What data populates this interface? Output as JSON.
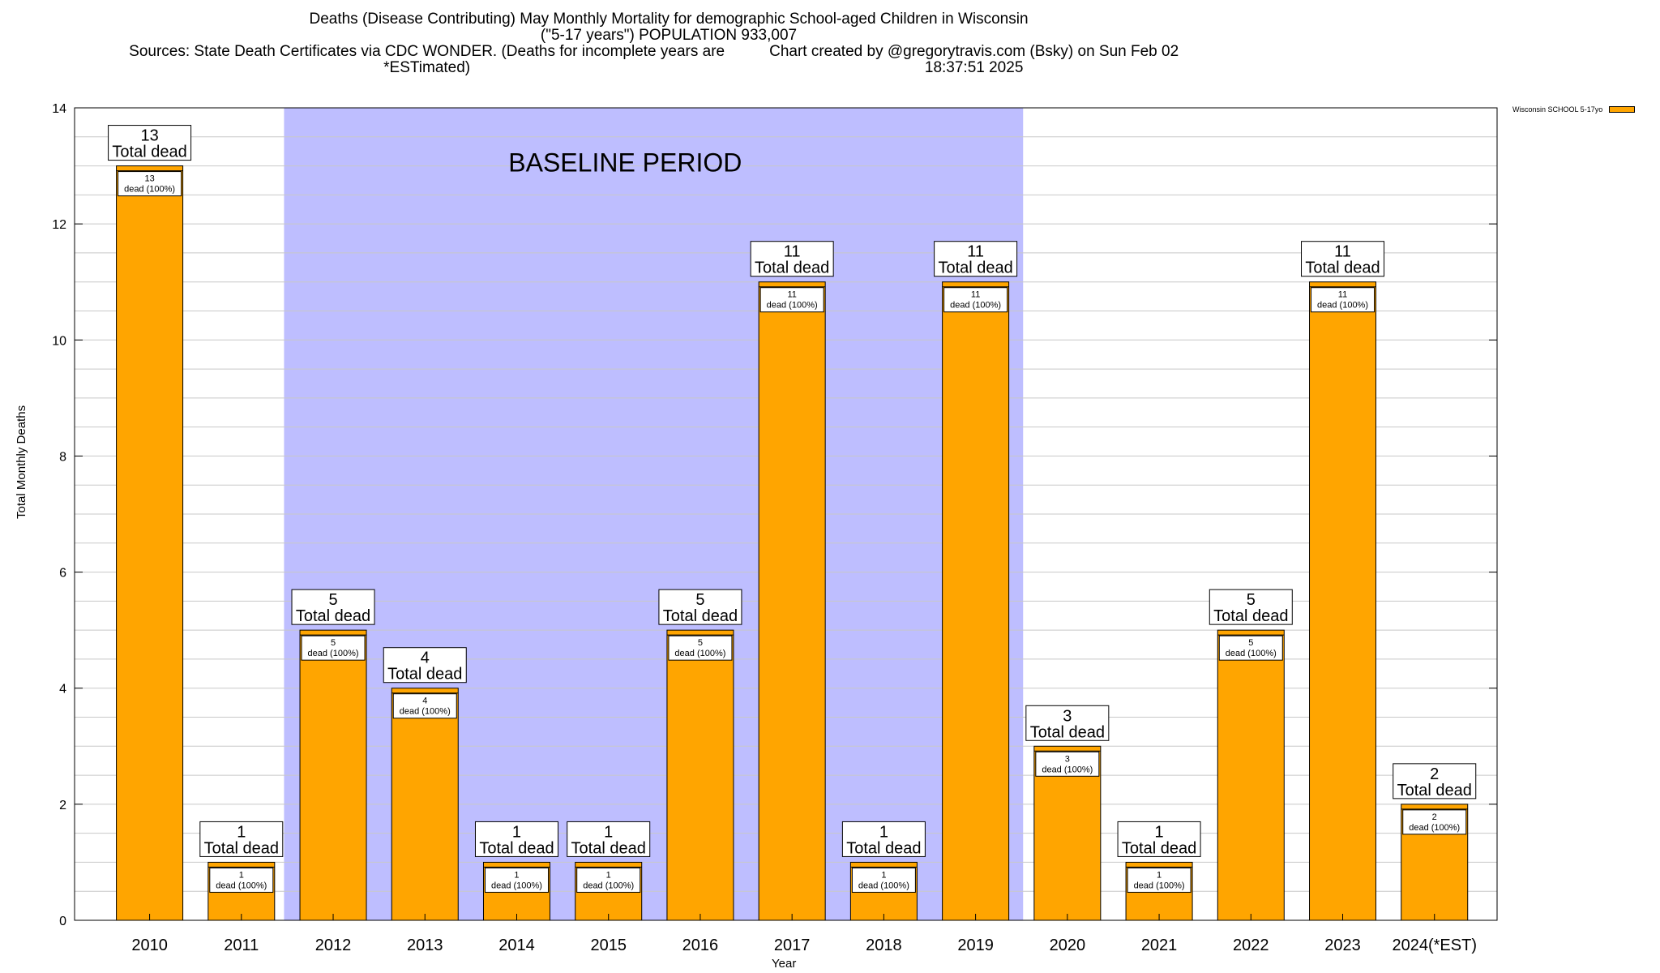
{
  "header": {
    "title": "Deaths (Disease Contributing) May Monthly Mortality for demographic School-aged Children in Wisconsin",
    "subtitle": "(\"5-17 years\") POPULATION 933,007",
    "sources": "Sources: State Death Certificates via CDC WONDER. (Deaths for incomplete years are *ESTimated)",
    "credit": "Chart created by @gregorytravis.com (Bsky) on Sun Feb 02 18:37:51 2025"
  },
  "legend": {
    "label": "Wisconsin SCHOOL 5-17yo"
  },
  "colors": {
    "bar": "#FFA500",
    "baseline": "#BEBEFF",
    "grid": "#C8C8C8"
  },
  "chart_data": {
    "type": "bar",
    "categories": [
      "2010",
      "2011",
      "2012",
      "2013",
      "2014",
      "2015",
      "2016",
      "2017",
      "2018",
      "2019",
      "2020",
      "2021",
      "2022",
      "2023",
      "2024(*EST)"
    ],
    "series": [
      {
        "name": "Wisconsin SCHOOL 5-17yo",
        "values": [
          13,
          1,
          5,
          4,
          1,
          1,
          5,
          11,
          1,
          11,
          3,
          1,
          5,
          11,
          2
        ]
      }
    ],
    "xlabel": "Year",
    "ylabel": "Total Monthly Deaths",
    "ylim": [
      0,
      14
    ],
    "yticks": [
      0,
      2,
      4,
      6,
      8,
      10,
      12,
      14
    ],
    "grid": true,
    "legend_position": "top-right",
    "annotations": {
      "baseline_label": "BASELINE PERIOD",
      "baseline_range": [
        "2012",
        "2019"
      ],
      "total_label": "Total dead",
      "inner_label": "dead (100%)"
    }
  }
}
